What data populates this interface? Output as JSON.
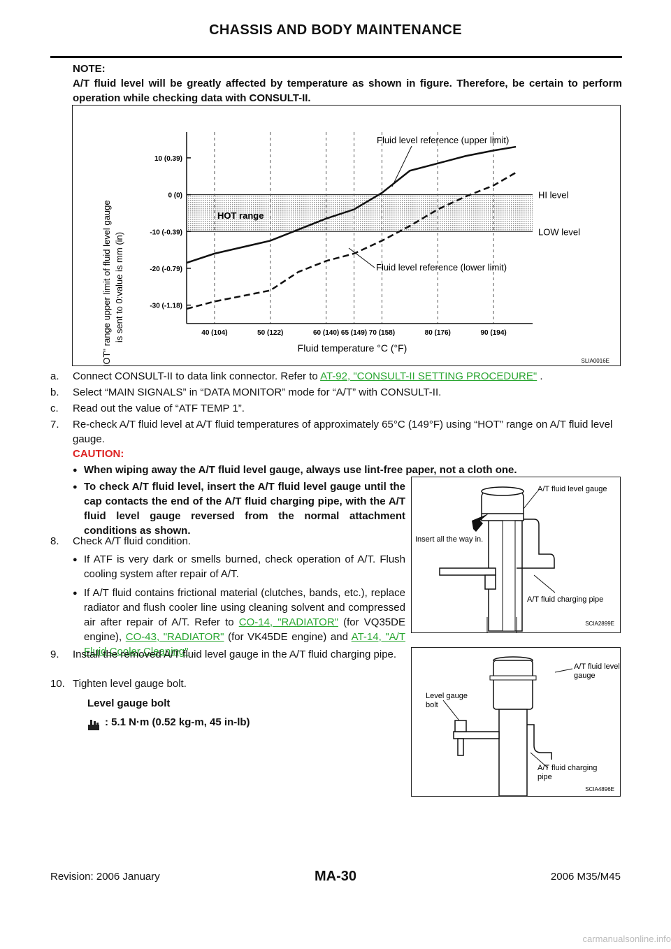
{
  "header": {
    "title": "CHASSIS AND BODY MAINTENANCE"
  },
  "note": {
    "label": "NOTE:",
    "text": "A/T fluid level will be greatly affected by temperature as shown in figure. Therefore, be certain to perform operation while checking data with CONSULT-II."
  },
  "chart_data": {
    "type": "line",
    "ylabel_line1": "\"HOT\" range upper limit of fluid level gauge",
    "ylabel_line2": "is sent to 0:value is mm (in)",
    "xlabel": "Fluid temperature °C (°F)",
    "x_ticks": [
      "40 (104)",
      "50 (122)",
      "60 (140)",
      "65 (149)",
      "70 (158)",
      "80 (176)",
      "90 (194)"
    ],
    "x_tick_values": [
      40,
      50,
      60,
      65,
      70,
      80,
      90
    ],
    "y_ticks": [
      "10 (0.39)",
      "0 (0)",
      "-10 (-0.39)",
      "-20 (-0.79)",
      "-30 (-1.18)"
    ],
    "y_tick_values": [
      10,
      0,
      -10,
      -20,
      -30
    ],
    "xlim": [
      35,
      97
    ],
    "ylim": [
      -35,
      17
    ],
    "hot_range": {
      "label": "HOT range",
      "from": -10,
      "to": 0,
      "hi_label": "HI level",
      "low_label": "LOW level"
    },
    "series": [
      {
        "name": "Fluid level reference (upper limit)",
        "style": "solid",
        "x": [
          35,
          40,
          50,
          60,
          65,
          70,
          75,
          80,
          85,
          90,
          94
        ],
        "y": [
          -18.5,
          -16,
          -12.5,
          -6.5,
          -4,
          0.5,
          6.5,
          8.5,
          10.5,
          12,
          13
        ]
      },
      {
        "name": "Fluid level reference (lower limit)",
        "style": "dashed",
        "x": [
          35,
          40,
          50,
          55,
          60,
          65,
          70,
          75,
          80,
          85,
          90,
          94
        ],
        "y": [
          -31,
          -29,
          -26,
          -21,
          -18,
          -16,
          -12.5,
          -8.5,
          -4,
          -0.5,
          2.5,
          6
        ]
      }
    ],
    "figure_id": "SLIA0016E"
  },
  "steps": {
    "a_label": "a.",
    "a_text": "Connect CONSULT-II to data link connector. Refer to",
    "a_link": "AT-92, \"CONSULT-II SETTING PROCEDURE\"",
    "a_end": ".",
    "b_label": "b.",
    "b_text": "Select “MAIN SIGNALS” in “DATA MONITOR” mode for “A/T” with CONSULT-II.",
    "c_label": "c.",
    "c_text": "Read out the value of “ATF TEMP 1”.",
    "s7_label": "7.",
    "s7_text": "Re-check A/T fluid level at A/T fluid temperatures of approximately 65°C (149°F) using “HOT” range on A/T fluid level gauge.",
    "caution_label": "CAUTION:",
    "caution_1": "When wiping away the A/T fluid level gauge, always use lint-free paper, not a cloth one.",
    "caution_2": "To check A/T fluid level, insert the A/T fluid level gauge until the cap contacts the end of the A/T fluid charging pipe, with the A/T fluid level gauge reversed from the normal attachment conditions as shown.",
    "s8_label": "8.",
    "s8_text": "Check A/T fluid condition.",
    "s8_b1": "If ATF is very dark or smells burned, check operation of A/T. Flush cooling system after repair of A/T.",
    "s8_b2_pre": "If A/T fluid contains frictional material (clutches, bands, etc.), replace radiator and flush cooler line using cleaning solvent and compressed air after repair of A/T. Refer to",
    "s8_b2_link1": "CO-14, \"RADIATOR\"",
    "s8_b2_mid": "(for VQ35DE engine),",
    "s8_b2_link2": "CO-43, \"RADIATOR\"",
    "s8_b2_mid2": "(for VK45DE engine) and",
    "s8_b2_link3": "AT-14, \"A/T Fluid Cooler Cleaning\"",
    "s8_b2_end": ".",
    "s9_label": "9.",
    "s9_text": "Install the removed A/T fluid level gauge in the A/T fluid charging pipe.",
    "s10_label": "10.",
    "s10_text": "Tighten level gauge bolt.",
    "torque_title": "Level gauge bolt",
    "torque_value": ": 5.1 N·m (0.52 kg-m, 45 in-lb)"
  },
  "fig2": {
    "label_gauge": "A/T fluid level gauge",
    "label_insert": "Insert all the way in.",
    "label_pipe": "A/T fluid charging pipe",
    "id": "SCIA2899E"
  },
  "fig3": {
    "label_gauge_1": "A/T fluid level",
    "label_gauge_2": "gauge",
    "label_bolt_1": "Level gauge",
    "label_bolt_2": "bolt",
    "label_pipe_1": "A/T fluid charging",
    "label_pipe_2": "pipe",
    "id": "SCIA4896E"
  },
  "footer": {
    "revision": "Revision: 2006 January",
    "page": "MA-30",
    "model": "2006 M35/M45",
    "watermark": "carmanualsonline.info"
  }
}
